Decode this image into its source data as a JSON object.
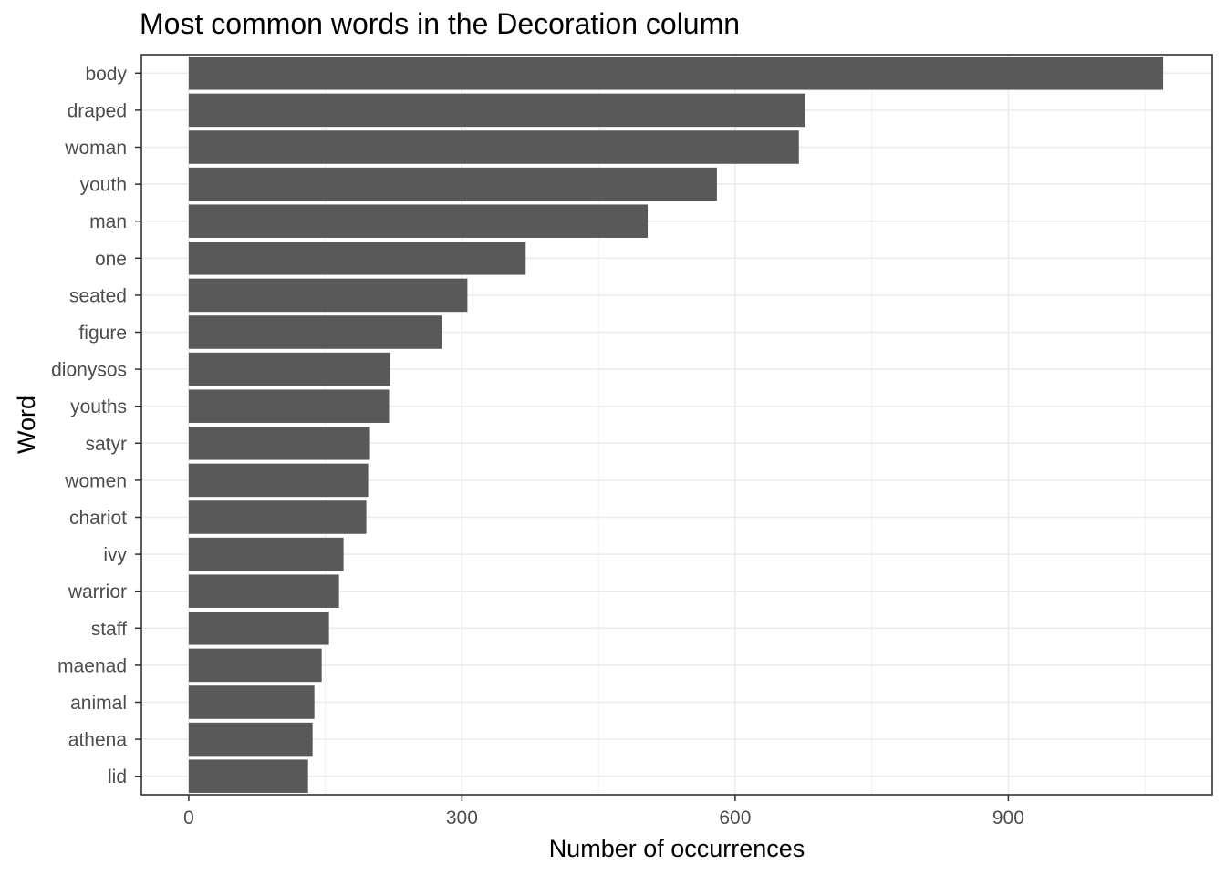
{
  "chart_data": {
    "type": "bar",
    "orientation": "horizontal",
    "title": "Most common words in the Decoration column",
    "xlabel": "Number of occurrences",
    "ylabel": "Word",
    "categories": [
      "body",
      "draped",
      "woman",
      "youth",
      "man",
      "one",
      "seated",
      "figure",
      "dionysos",
      "youths",
      "satyr",
      "women",
      "chariot",
      "ivy",
      "warrior",
      "staff",
      "maenad",
      "animal",
      "athena",
      "lid"
    ],
    "values": [
      1070,
      677,
      670,
      580,
      504,
      370,
      306,
      278,
      221,
      220,
      199,
      197,
      195,
      170,
      165,
      154,
      146,
      138,
      136,
      131
    ],
    "xlim": [
      -52,
      1124
    ],
    "xticks": [
      0,
      300,
      600,
      900
    ],
    "xtick_labels": [
      "0",
      "300",
      "600",
      "900"
    ],
    "grid": true,
    "bar_color": "#595959"
  }
}
